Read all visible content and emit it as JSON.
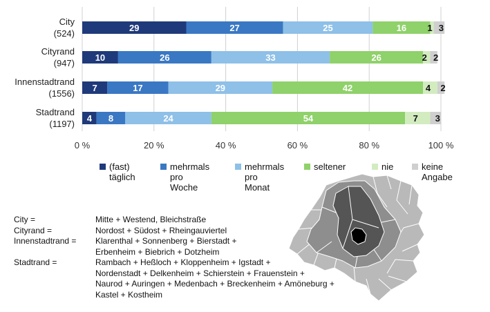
{
  "chart_data": {
    "type": "bar",
    "orientation": "horizontal",
    "stacked": true,
    "categories": [
      "City\n(524)",
      "Cityrand\n(947)",
      "Innenstadtrand\n(1556)",
      "Stadtrand\n(1197)"
    ],
    "series": [
      {
        "name": "(fast)\ntäglich",
        "color": "#1f3a7a",
        "values": [
          29,
          10,
          7,
          4
        ]
      },
      {
        "name": "mehrmals\npro\nWoche",
        "color": "#3a78c4",
        "values": [
          27,
          26,
          17,
          8
        ]
      },
      {
        "name": "mehrmals\npro\nMonat",
        "color": "#8ec0e8",
        "values": [
          25,
          33,
          29,
          24
        ]
      },
      {
        "name": "seltener",
        "color": "#8fd16a",
        "values": [
          16,
          26,
          42,
          54
        ]
      },
      {
        "name": "nie",
        "color": "#d2ecc0",
        "values": [
          1,
          2,
          4,
          7
        ]
      },
      {
        "name": "keine\nAngabe",
        "color": "#cfcfcf",
        "values": [
          3,
          2,
          2,
          3
        ]
      }
    ],
    "xlim": [
      0,
      100
    ],
    "xticks": [
      "0 %",
      "20 %",
      "40 %",
      "60 %",
      "80 %",
      "100 %"
    ],
    "grid": true,
    "legend": "bottom"
  },
  "definitions": [
    {
      "term": "City =",
      "lines": [
        "Mitte + Westend, Bleichstraße"
      ]
    },
    {
      "term": "Cityrand =",
      "lines": [
        "Nordost + Südost + Rheingauviertel"
      ]
    },
    {
      "term": "Innenstadtrand =",
      "lines": [
        "Klarenthal + Sonnenberg + Bierstadt +",
        "Erbenheim + Biebrich + Dotzheim"
      ]
    },
    {
      "term": "Stadtrand =",
      "lines": [
        "Rambach + Heßloch + Kloppenheim + Igstadt +",
        "Nordenstadt + Delkenheim + Schierstein + Frauenstein +",
        "Naurod + Auringen + Medenbach + Breckenheim + Amöneburg +",
        "Kastel + Kostheim"
      ]
    }
  ],
  "map": {
    "zones": [
      {
        "name": "Stadtrand",
        "color": "#b9b9b9"
      },
      {
        "name": "Innenstadtrand",
        "color": "#8e8e8e"
      },
      {
        "name": "Cityrand",
        "color": "#555555"
      },
      {
        "name": "City",
        "color": "#000000"
      }
    ]
  }
}
